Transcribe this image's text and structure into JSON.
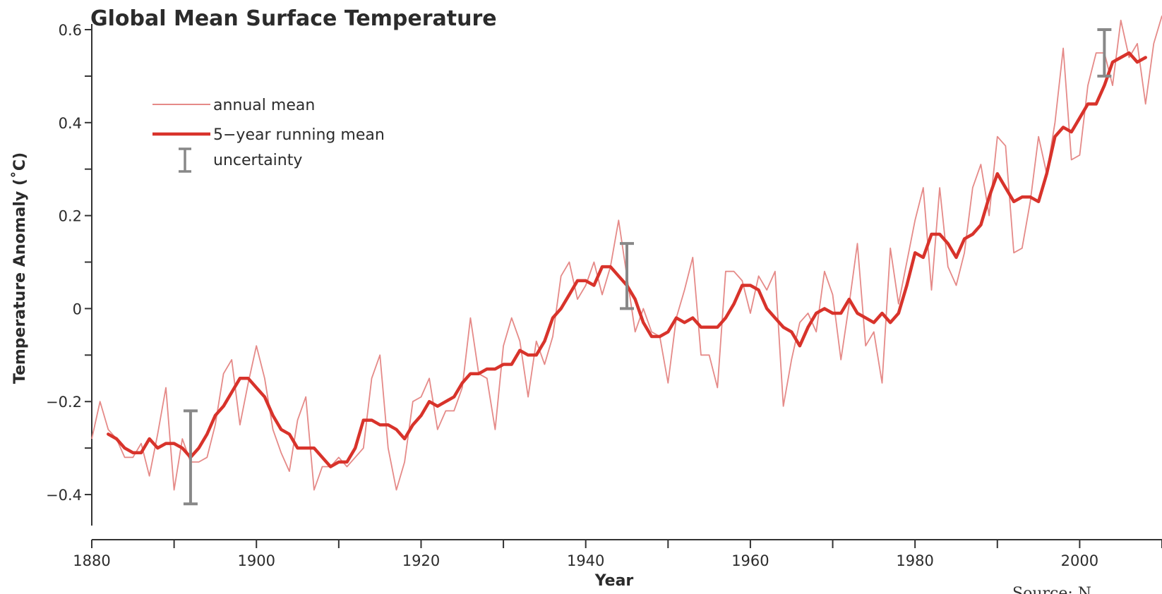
{
  "chart_data": {
    "type": "line",
    "title": "Global Mean Surface Temperature",
    "xlabel": "Year",
    "ylabel": "Temperature Anomaly (˚C)",
    "xlim": [
      1880,
      2010
    ],
    "ylim": [
      -0.45,
      0.6
    ],
    "x_ticks": [
      1880,
      1900,
      1920,
      1940,
      1960,
      1980,
      2000
    ],
    "x_minor_ticks": [
      1890,
      1910,
      1930,
      1950,
      1970,
      1990,
      2010
    ],
    "y_ticks": [
      {
        "value": 0.6,
        "label": "0.6"
      },
      {
        "value": 0.5,
        "label": ""
      },
      {
        "value": 0.4,
        "label": "0.4"
      },
      {
        "value": 0.3,
        "label": ""
      },
      {
        "value": 0.2,
        "label": "0.2"
      },
      {
        "value": 0.1,
        "label": ""
      },
      {
        "value": 0,
        "label": "0"
      },
      {
        "value": -0.1,
        "label": ""
      },
      {
        "value": -0.2,
        "label": "−0.2"
      },
      {
        "value": -0.3,
        "label": ""
      },
      {
        "value": -0.4,
        "label": "−0.4"
      }
    ],
    "grid": false,
    "legend": {
      "position": "top-left",
      "entries": [
        {
          "label": "annual mean",
          "style": "thin"
        },
        {
          "label": "5−year running mean",
          "style": "thick"
        },
        {
          "label": "uncertainty",
          "style": "errorbar"
        }
      ]
    },
    "colors": {
      "annual": "#e58a88",
      "running": "#d8332b",
      "uncertainty": "#888888"
    },
    "annual_mean": {
      "x": [
        1880,
        1881,
        1882,
        1883,
        1884,
        1885,
        1886,
        1887,
        1888,
        1889,
        1890,
        1891,
        1892,
        1893,
        1894,
        1895,
        1896,
        1897,
        1898,
        1899,
        1900,
        1901,
        1902,
        1903,
        1904,
        1905,
        1906,
        1907,
        1908,
        1909,
        1910,
        1911,
        1912,
        1913,
        1914,
        1915,
        1916,
        1917,
        1918,
        1919,
        1920,
        1921,
        1922,
        1923,
        1924,
        1925,
        1926,
        1927,
        1928,
        1929,
        1930,
        1931,
        1932,
        1933,
        1934,
        1935,
        1936,
        1937,
        1938,
        1939,
        1940,
        1941,
        1942,
        1943,
        1944,
        1945,
        1946,
        1947,
        1948,
        1949,
        1950,
        1951,
        1952,
        1953,
        1954,
        1955,
        1956,
        1957,
        1958,
        1959,
        1960,
        1961,
        1962,
        1963,
        1964,
        1965,
        1966,
        1967,
        1968,
        1969,
        1970,
        1971,
        1972,
        1973,
        1974,
        1975,
        1976,
        1977,
        1978,
        1979,
        1980,
        1981,
        1982,
        1983,
        1984,
        1985,
        1986,
        1987,
        1988,
        1989,
        1990,
        1991,
        1992,
        1993,
        1994,
        1995,
        1996,
        1997,
        1998,
        1999,
        2000,
        2001,
        2002,
        2003,
        2004,
        2005,
        2006,
        2007,
        2008,
        2009,
        2010
      ],
      "y": [
        -0.28,
        -0.2,
        -0.26,
        -0.28,
        -0.32,
        -0.32,
        -0.29,
        -0.36,
        -0.27,
        -0.17,
        -0.39,
        -0.28,
        -0.33,
        -0.33,
        -0.32,
        -0.25,
        -0.14,
        -0.11,
        -0.25,
        -0.16,
        -0.08,
        -0.15,
        -0.26,
        -0.31,
        -0.35,
        -0.24,
        -0.19,
        -0.39,
        -0.34,
        -0.34,
        -0.32,
        -0.34,
        -0.32,
        -0.3,
        -0.15,
        -0.1,
        -0.3,
        -0.39,
        -0.33,
        -0.2,
        -0.19,
        -0.15,
        -0.26,
        -0.22,
        -0.22,
        -0.17,
        -0.02,
        -0.14,
        -0.15,
        -0.26,
        -0.08,
        -0.02,
        -0.07,
        -0.19,
        -0.07,
        -0.12,
        -0.06,
        0.07,
        0.1,
        0.02,
        0.05,
        0.1,
        0.03,
        0.09,
        0.19,
        0.07,
        -0.05,
        0.0,
        -0.05,
        -0.06,
        -0.16,
        -0.02,
        0.04,
        0.11,
        -0.1,
        -0.1,
        -0.17,
        0.08,
        0.08,
        0.06,
        -0.01,
        0.07,
        0.04,
        0.08,
        -0.21,
        -0.11,
        -0.03,
        -0.01,
        -0.05,
        0.08,
        0.03,
        -0.11,
        0.01,
        0.14,
        -0.08,
        -0.05,
        -0.16,
        0.13,
        0.01,
        0.1,
        0.19,
        0.26,
        0.04,
        0.26,
        0.09,
        0.05,
        0.12,
        0.26,
        0.31,
        0.2,
        0.37,
        0.35,
        0.12,
        0.13,
        0.23,
        0.37,
        0.29,
        0.4,
        0.56,
        0.32,
        0.33,
        0.48,
        0.55,
        0.55,
        0.48,
        0.62,
        0.54,
        0.57,
        0.44,
        0.57,
        0.63
      ]
    },
    "running_mean": {
      "x": [
        1882,
        1883,
        1884,
        1885,
        1886,
        1887,
        1888,
        1889,
        1890,
        1891,
        1892,
        1893,
        1894,
        1895,
        1896,
        1897,
        1898,
        1899,
        1900,
        1901,
        1902,
        1903,
        1904,
        1905,
        1906,
        1907,
        1908,
        1909,
        1910,
        1911,
        1912,
        1913,
        1914,
        1915,
        1916,
        1917,
        1918,
        1919,
        1920,
        1921,
        1922,
        1923,
        1924,
        1925,
        1926,
        1927,
        1928,
        1929,
        1930,
        1931,
        1932,
        1933,
        1934,
        1935,
        1936,
        1937,
        1938,
        1939,
        1940,
        1941,
        1942,
        1943,
        1944,
        1945,
        1946,
        1947,
        1948,
        1949,
        1950,
        1951,
        1952,
        1953,
        1954,
        1955,
        1956,
        1957,
        1958,
        1959,
        1960,
        1961,
        1962,
        1963,
        1964,
        1965,
        1966,
        1967,
        1968,
        1969,
        1970,
        1971,
        1972,
        1973,
        1974,
        1975,
        1976,
        1977,
        1978,
        1979,
        1980,
        1981,
        1982,
        1983,
        1984,
        1985,
        1986,
        1987,
        1988,
        1989,
        1990,
        1991,
        1992,
        1993,
        1994,
        1995,
        1996,
        1997,
        1998,
        1999,
        2000,
        2001,
        2002,
        2003,
        2004,
        2005,
        2006,
        2007,
        2008
      ],
      "y": [
        -0.27,
        -0.28,
        -0.3,
        -0.31,
        -0.31,
        -0.28,
        -0.3,
        -0.29,
        -0.29,
        -0.3,
        -0.32,
        -0.3,
        -0.27,
        -0.23,
        -0.21,
        -0.18,
        -0.15,
        -0.15,
        -0.17,
        -0.19,
        -0.23,
        -0.26,
        -0.27,
        -0.3,
        -0.3,
        -0.3,
        -0.32,
        -0.34,
        -0.33,
        -0.33,
        -0.3,
        -0.24,
        -0.24,
        -0.25,
        -0.25,
        -0.26,
        -0.28,
        -0.25,
        -0.23,
        -0.2,
        -0.21,
        -0.2,
        -0.19,
        -0.16,
        -0.14,
        -0.14,
        -0.13,
        -0.13,
        -0.12,
        -0.12,
        -0.09,
        -0.1,
        -0.1,
        -0.07,
        -0.02,
        0.0,
        0.03,
        0.06,
        0.06,
        0.05,
        0.09,
        0.09,
        0.07,
        0.05,
        0.02,
        -0.03,
        -0.06,
        -0.06,
        -0.05,
        -0.02,
        -0.03,
        -0.02,
        -0.04,
        -0.04,
        -0.04,
        -0.02,
        0.01,
        0.05,
        0.05,
        0.04,
        0.0,
        -0.02,
        -0.04,
        -0.05,
        -0.08,
        -0.04,
        -0.01,
        0.0,
        -0.01,
        -0.01,
        0.02,
        -0.01,
        -0.02,
        -0.03,
        -0.01,
        -0.03,
        -0.01,
        0.05,
        0.12,
        0.11,
        0.16,
        0.16,
        0.14,
        0.11,
        0.15,
        0.16,
        0.18,
        0.24,
        0.29,
        0.26,
        0.23,
        0.24,
        0.24,
        0.23,
        0.29,
        0.37,
        0.39,
        0.38,
        0.41,
        0.44,
        0.44,
        0.48,
        0.53,
        0.54,
        0.55,
        0.53,
        0.54
      ]
    },
    "uncertainty_bars": [
      {
        "x": 1892,
        "low": -0.42,
        "high": -0.22
      },
      {
        "x": 1945,
        "low": 0.0,
        "high": 0.14
      },
      {
        "x": 2003,
        "low": 0.5,
        "high": 0.6
      }
    ]
  },
  "source_text": "Source: N"
}
